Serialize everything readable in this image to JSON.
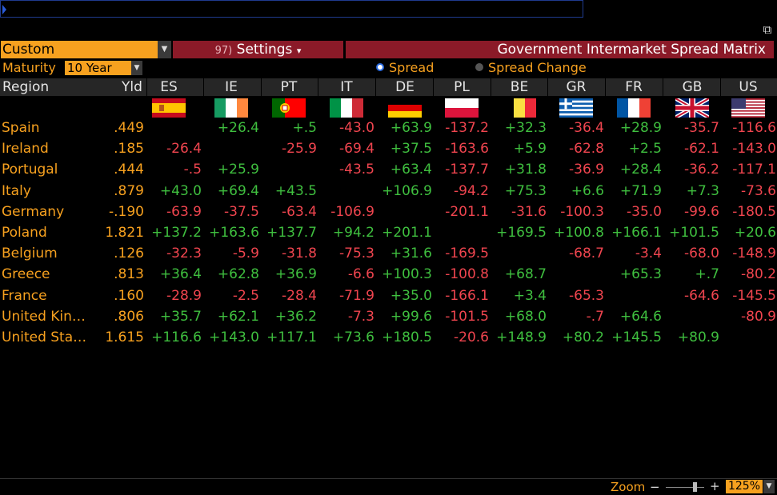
{
  "toolbar": {
    "custom_label": "Custom",
    "settings_num": "97)",
    "settings_label": "Settings",
    "settings_arrow": "▾",
    "title": "Government Intermarket Spread Matrix"
  },
  "options": {
    "maturity_label": "Maturity",
    "maturity_value": "10 Year",
    "radio_spread": "Spread",
    "radio_spread_change": "Spread Change",
    "selected": "Spread"
  },
  "header": {
    "region": "Region",
    "yld": "Yld",
    "columns": [
      "ES",
      "IE",
      "PT",
      "IT",
      "DE",
      "PL",
      "BE",
      "GR",
      "FR",
      "GB",
      "US"
    ]
  },
  "flags": [
    "spain-flag-icon",
    "ireland-flag-icon",
    "portugal-flag-icon",
    "italy-flag-icon",
    "germany-flag-icon",
    "poland-flag-icon",
    "belgium-flag-icon",
    "greece-flag-icon",
    "france-flag-icon",
    "uk-flag-icon",
    "us-flag-icon"
  ],
  "rows": [
    {
      "region": "Spain",
      "yld": ".449",
      "values": [
        "",
        "+26.4",
        "+.5",
        "-43.0",
        "+63.9",
        "-137.2",
        "+32.3",
        "-36.4",
        "+28.9",
        "-35.7",
        "-116.6"
      ]
    },
    {
      "region": "Ireland",
      "yld": ".185",
      "values": [
        "-26.4",
        "",
        "-25.9",
        "-69.4",
        "+37.5",
        "-163.6",
        "+5.9",
        "-62.8",
        "+2.5",
        "-62.1",
        "-143.0"
      ]
    },
    {
      "region": "Portugal",
      "yld": ".444",
      "values": [
        "-.5",
        "+25.9",
        "",
        "-43.5",
        "+63.4",
        "-137.7",
        "+31.8",
        "-36.9",
        "+28.4",
        "-36.2",
        "-117.1"
      ]
    },
    {
      "region": "Italy",
      "yld": ".879",
      "values": [
        "+43.0",
        "+69.4",
        "+43.5",
        "",
        "+106.9",
        "-94.2",
        "+75.3",
        "+6.6",
        "+71.9",
        "+7.3",
        "-73.6"
      ]
    },
    {
      "region": "Germany",
      "yld": "-.190",
      "values": [
        "-63.9",
        "-37.5",
        "-63.4",
        "-106.9",
        "",
        "-201.1",
        "-31.6",
        "-100.3",
        "-35.0",
        "-99.6",
        "-180.5"
      ]
    },
    {
      "region": "Poland",
      "yld": "1.821",
      "values": [
        "+137.2",
        "+163.6",
        "+137.7",
        "+94.2",
        "+201.1",
        "",
        "+169.5",
        "+100.8",
        "+166.1",
        "+101.5",
        "+20.6"
      ]
    },
    {
      "region": "Belgium",
      "yld": ".126",
      "values": [
        "-32.3",
        "-5.9",
        "-31.8",
        "-75.3",
        "+31.6",
        "-169.5",
        "",
        "-68.7",
        "-3.4",
        "-68.0",
        "-148.9"
      ]
    },
    {
      "region": "Greece",
      "yld": ".813",
      "values": [
        "+36.4",
        "+62.8",
        "+36.9",
        "-6.6",
        "+100.3",
        "-100.8",
        "+68.7",
        "",
        "+65.3",
        "+.7",
        "-80.2"
      ]
    },
    {
      "region": "France",
      "yld": ".160",
      "values": [
        "-28.9",
        "-2.5",
        "-28.4",
        "-71.9",
        "+35.0",
        "-166.1",
        "+3.4",
        "-65.3",
        "",
        "-64.6",
        "-145.5"
      ]
    },
    {
      "region": "United Kin…",
      "yld": ".806",
      "values": [
        "+35.7",
        "+62.1",
        "+36.2",
        "-7.3",
        "+99.6",
        "-101.5",
        "+68.0",
        "-.7",
        "+64.6",
        "",
        "-80.9"
      ]
    },
    {
      "region": "United Sta…",
      "yld": "1.615",
      "values": [
        "+116.6",
        "+143.0",
        "+117.1",
        "+73.6",
        "+180.5",
        "-20.6",
        "+148.9",
        "+80.2",
        "+145.5",
        "+80.9",
        ""
      ]
    }
  ],
  "zoom": {
    "label": "Zoom",
    "minus": "−",
    "plus": "+",
    "value": "125%",
    "level_percent": 125
  },
  "colors": {
    "positive": "#3fbf3f",
    "negative": "#f0454f",
    "accent": "#f7a11f",
    "title_bg": "#8b1a28"
  }
}
